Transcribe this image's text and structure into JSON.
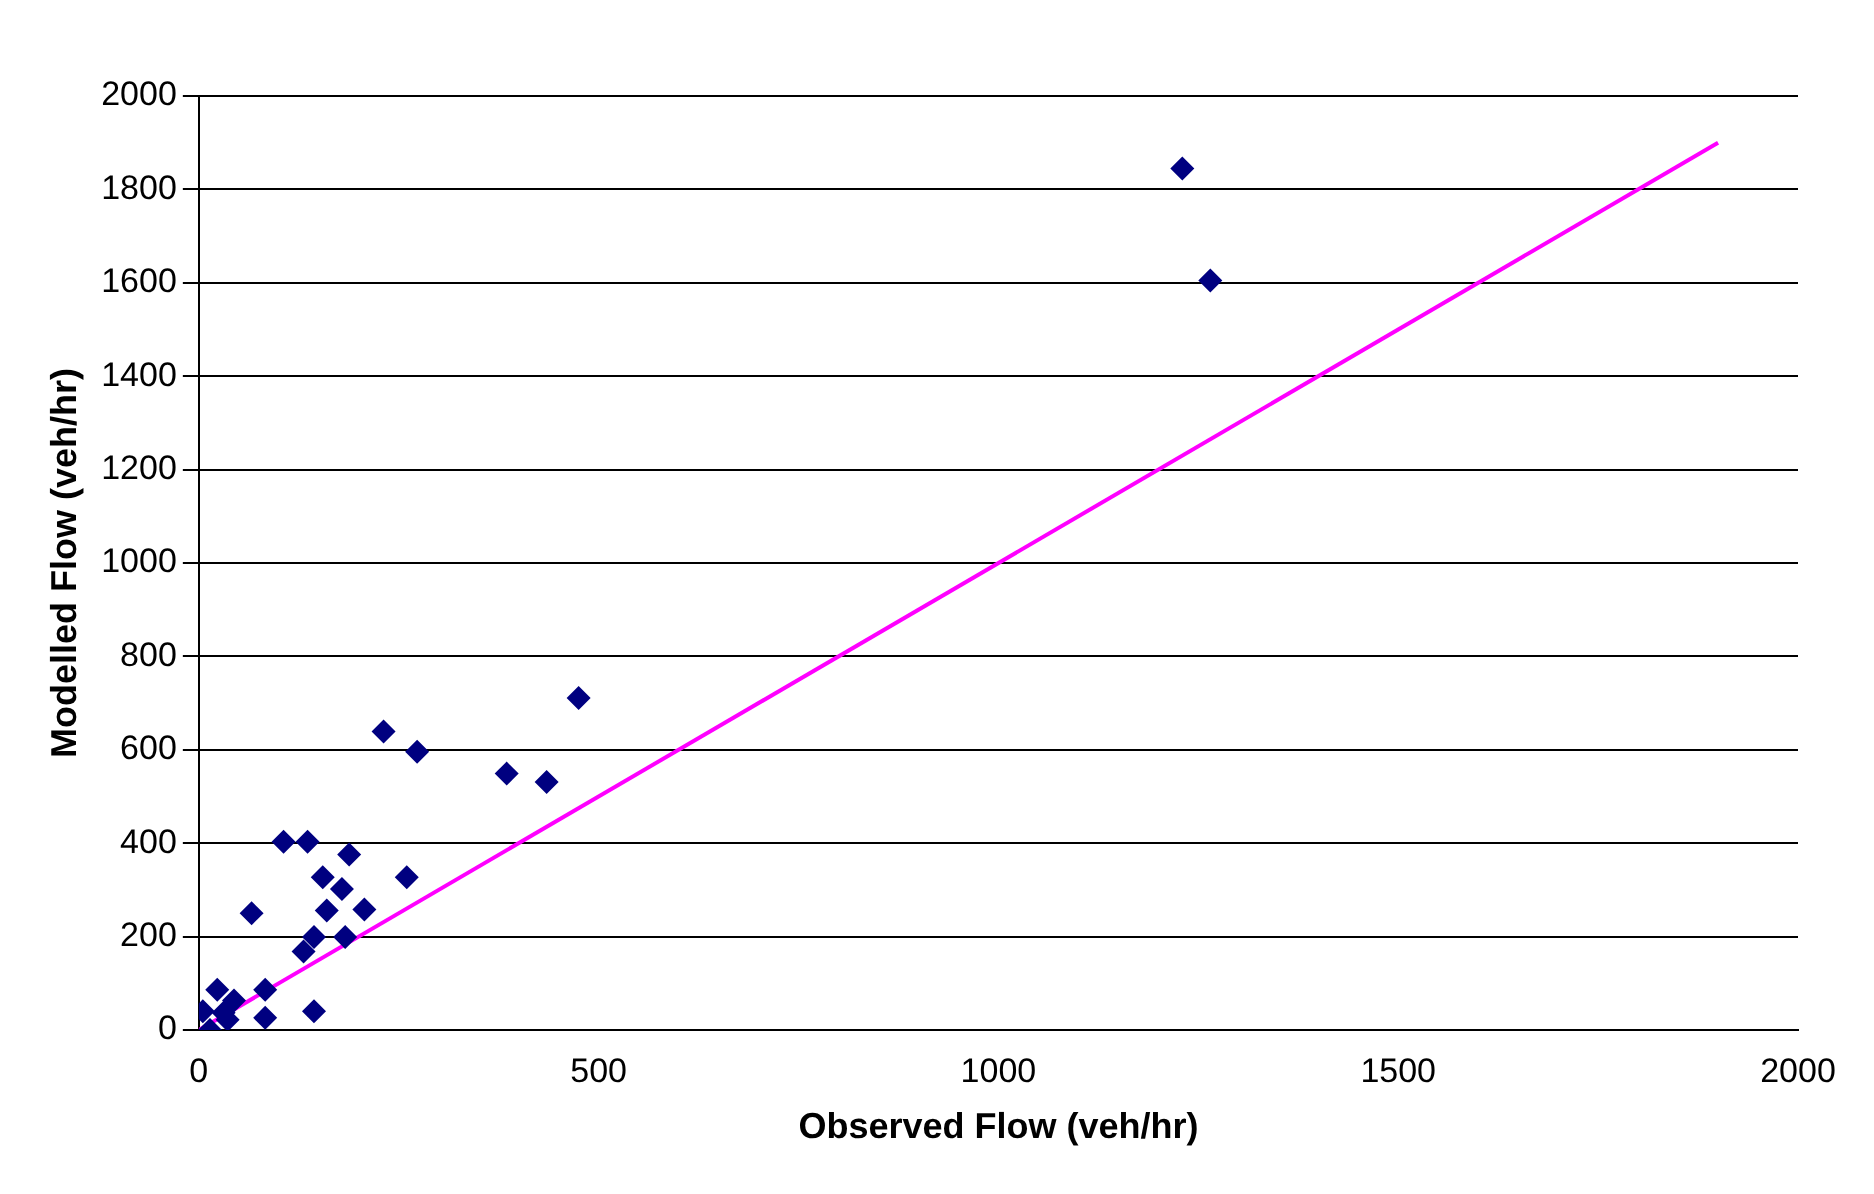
{
  "chart_data": {
    "type": "scatter",
    "xlabel": "Observed Flow (veh/hr)",
    "ylabel": "Modelled Flow (veh/hr)",
    "xlim": [
      0,
      2000
    ],
    "xticks": [
      0,
      500,
      1000,
      1500,
      2000
    ],
    "ylim": [
      0,
      2000
    ],
    "yticks": [
      0,
      200,
      400,
      600,
      800,
      1000,
      1200,
      1400,
      1600,
      1800,
      2000
    ],
    "grid": "y",
    "legend": false,
    "series": [
      {
        "color": "#000080",
        "marker": "diamond",
        "x": [
          1230,
          1265,
          475,
          231,
          273,
          385,
          435,
          106,
          136,
          188,
          260,
          155,
          179,
          66,
          160,
          207,
          144,
          183,
          131,
          23,
          83,
          44,
          83,
          144,
          5,
          31,
          14,
          36
        ],
        "values": [
          1845,
          1605,
          711,
          639,
          596,
          549,
          531,
          403,
          403,
          376,
          327,
          327,
          302,
          250,
          256,
          258,
          199,
          199,
          168,
          86,
          86,
          63,
          26,
          40,
          40,
          37,
          0,
          22
        ]
      },
      {
        "type": "line",
        "marker": "none",
        "color": "#ff00ff",
        "x": [
          0,
          1900
        ],
        "values": [
          0,
          1900
        ]
      }
    ]
  }
}
